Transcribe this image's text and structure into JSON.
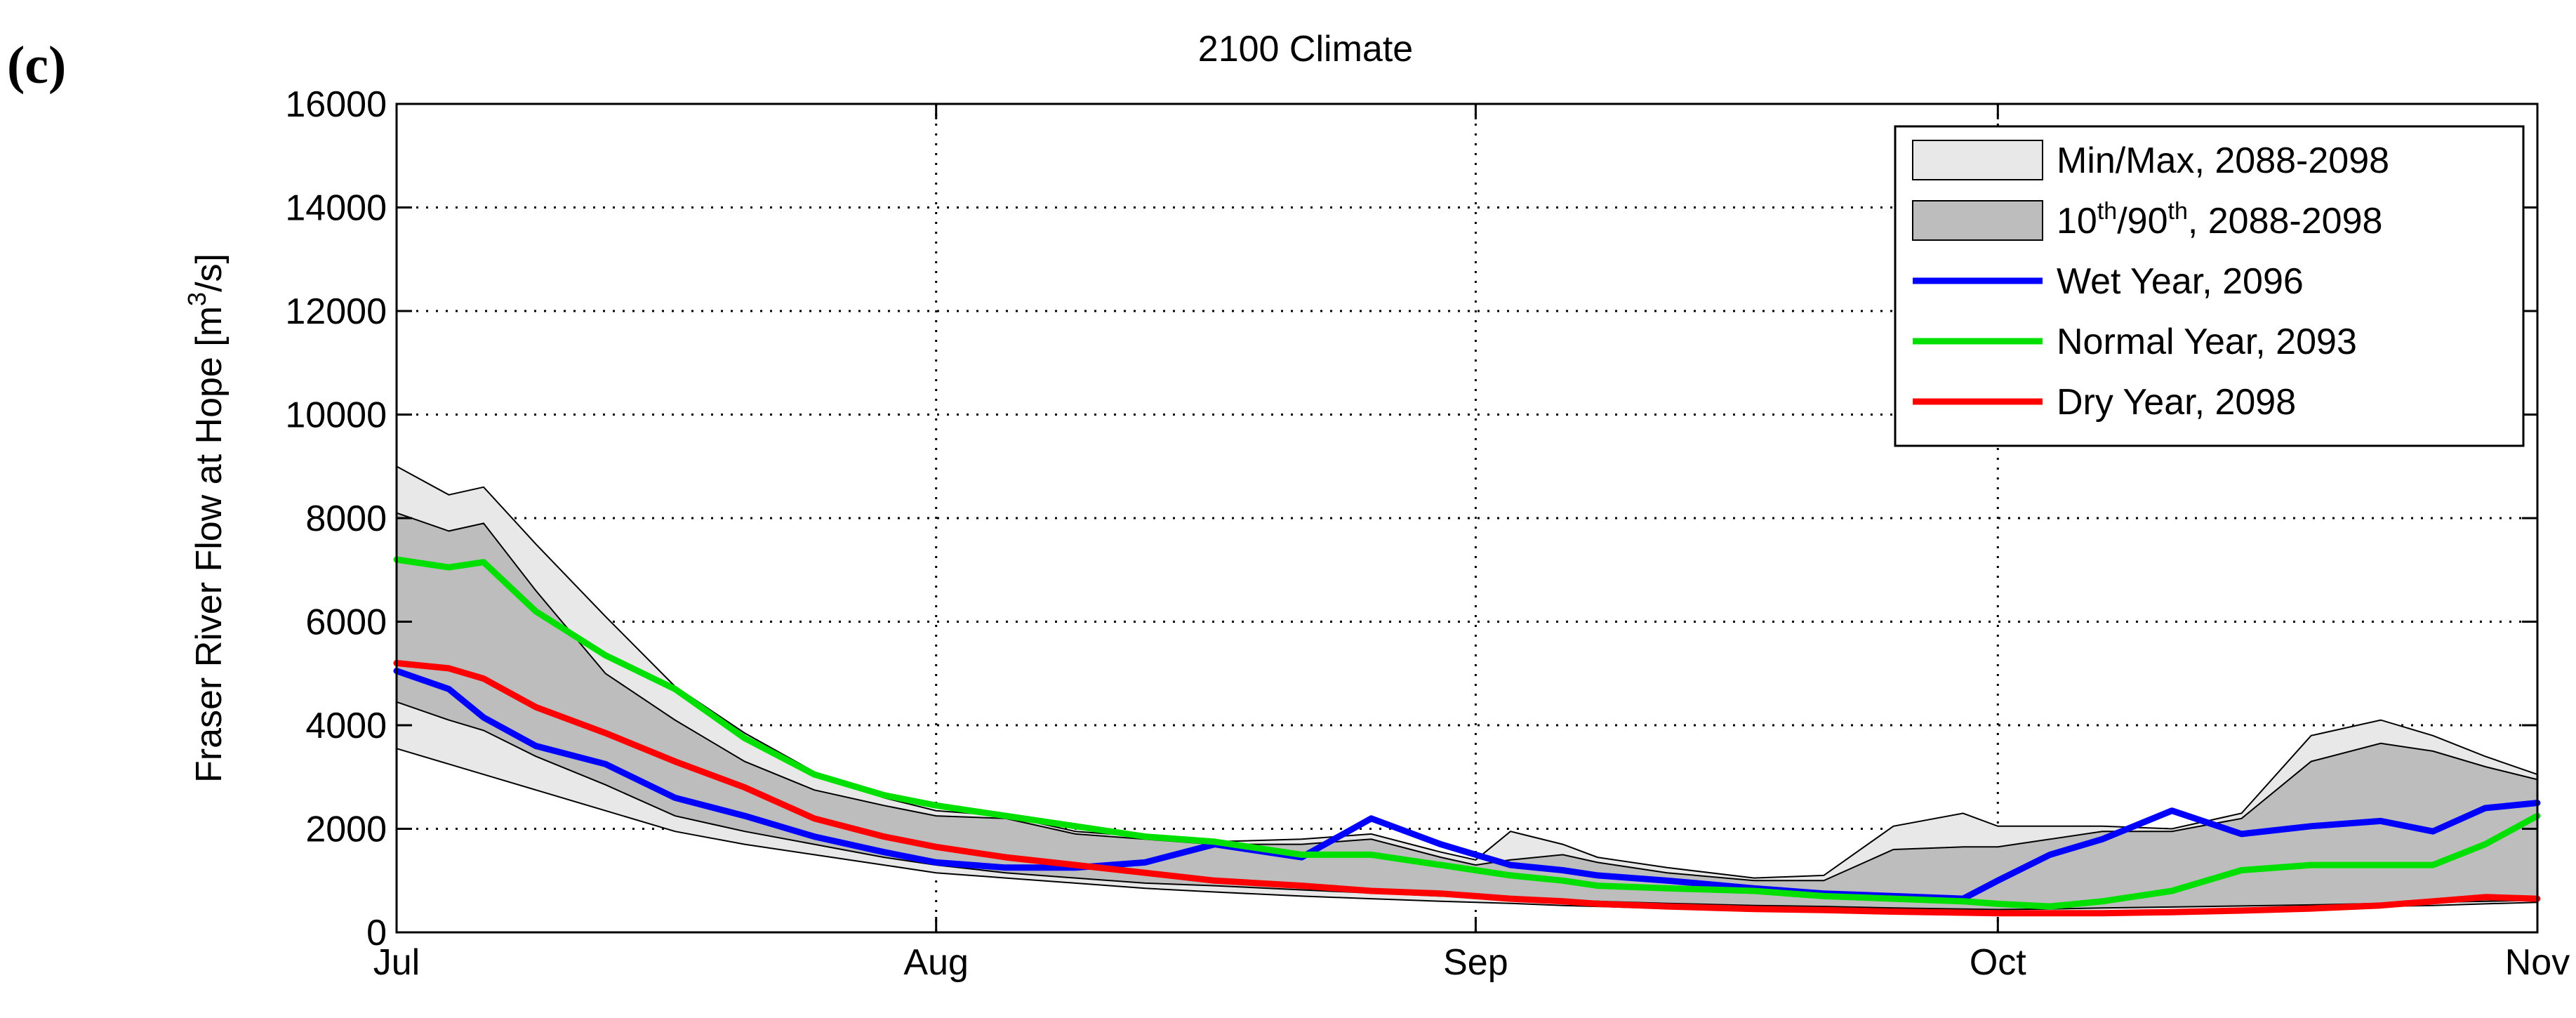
{
  "panel_label": "(c)",
  "chart_data": {
    "type": "area",
    "title": "2100 Climate",
    "xlabel": "",
    "ylabel": "Fraser River Flow at Hope [m",
    "ylabel_sup": "3",
    "ylabel_tail": "/s]",
    "x_ticks": [
      {
        "label": "Jul",
        "day": 0
      },
      {
        "label": "Aug",
        "day": 31
      },
      {
        "label": "Sep",
        "day": 62
      },
      {
        "label": "Oct",
        "day": 92
      },
      {
        "label": "Nov",
        "day": 123
      }
    ],
    "xlim": [
      0,
      123
    ],
    "ylim": [
      0,
      16000
    ],
    "y_ticks": [
      0,
      2000,
      4000,
      6000,
      8000,
      10000,
      12000,
      14000,
      16000
    ],
    "grid": true,
    "legend_position": "top-right",
    "legend": [
      {
        "id": "minmax",
        "pre": "Min/Max, 2088-2098",
        "type": "patch",
        "color": "#e8e8e8"
      },
      {
        "id": "p1090",
        "pre": "10",
        "sup1": "th",
        "mid": "/90",
        "sup2": "th",
        "post": ", 2088-2098",
        "type": "patch",
        "color": "#bdbdbd"
      },
      {
        "id": "wet",
        "pre": "Wet Year, 2096",
        "type": "line",
        "color": "#0000ff"
      },
      {
        "id": "normal",
        "pre": "Normal Year, 2093",
        "type": "line",
        "color": "#00e000"
      },
      {
        "id": "dry",
        "pre": "Dry Year, 2098",
        "type": "line",
        "color": "#ff0000"
      }
    ],
    "colors": {
      "minmax_fill": "#e8e8e8",
      "p1090_fill": "#bdbdbd",
      "band_edge": "#000000"
    },
    "x": [
      0,
      3,
      5,
      8,
      12,
      16,
      20,
      24,
      28,
      31,
      35,
      39,
      43,
      47,
      52,
      56,
      60,
      62,
      64,
      67,
      69,
      73,
      78,
      82,
      86,
      90,
      92,
      95,
      98,
      102,
      106,
      110,
      114,
      117,
      120,
      123
    ],
    "bands": [
      {
        "name": "Min/Max, 2088-2098",
        "lower": [
          3550,
          3250,
          3050,
          2750,
          2350,
          1950,
          1700,
          1500,
          1300,
          1150,
          1050,
          950,
          850,
          780,
          700,
          650,
          600,
          580,
          560,
          520,
          500,
          460,
          430,
          400,
          380,
          360,
          350,
          360,
          380,
          420,
          450,
          470,
          500,
          520,
          550,
          580
        ],
        "upper": [
          9000,
          8450,
          8600,
          7500,
          6100,
          4750,
          3850,
          3100,
          2600,
          2350,
          2250,
          1950,
          1850,
          1750,
          1800,
          1900,
          1550,
          1400,
          1950,
          1700,
          1450,
          1250,
          1050,
          1100,
          2050,
          2300,
          2050,
          2050,
          2050,
          2000,
          2300,
          3800,
          4100,
          3800,
          3400,
          3050
        ]
      },
      {
        "name": "10th/90th, 2088-2098",
        "lower": [
          4450,
          4100,
          3900,
          3400,
          2850,
          2250,
          1950,
          1700,
          1450,
          1300,
          1150,
          1050,
          950,
          900,
          820,
          760,
          700,
          680,
          650,
          620,
          600,
          560,
          520,
          500,
          470,
          450,
          440,
          450,
          470,
          490,
          510,
          530,
          560,
          580,
          600,
          620
        ],
        "upper": [
          8100,
          7750,
          7900,
          6600,
          5000,
          4100,
          3300,
          2750,
          2450,
          2250,
          2200,
          1900,
          1800,
          1700,
          1700,
          1800,
          1450,
          1300,
          1400,
          1500,
          1350,
          1150,
          1000,
          1000,
          1600,
          1650,
          1650,
          1800,
          1950,
          1950,
          2200,
          3300,
          3650,
          3500,
          3200,
          2950
        ]
      }
    ],
    "series": [
      {
        "name": "Wet Year, 2096",
        "color": "#0000ff",
        "values": [
          5050,
          4700,
          4150,
          3600,
          3250,
          2600,
          2250,
          1850,
          1550,
          1350,
          1250,
          1250,
          1350,
          1700,
          1450,
          2200,
          1700,
          1500,
          1300,
          1200,
          1100,
          1000,
          850,
          750,
          700,
          650,
          1000,
          1500,
          1800,
          2350,
          1900,
          2050,
          2150,
          1950,
          2400,
          2500
        ]
      },
      {
        "name": "Normal Year, 2093",
        "color": "#00e000",
        "values": [
          7200,
          7050,
          7150,
          6200,
          5350,
          4700,
          3750,
          3050,
          2650,
          2450,
          2250,
          2050,
          1850,
          1750,
          1500,
          1500,
          1300,
          1200,
          1100,
          1000,
          900,
          850,
          800,
          700,
          650,
          600,
          550,
          500,
          600,
          800,
          1200,
          1300,
          1300,
          1300,
          1700,
          2250
        ]
      },
      {
        "name": "Dry Year, 2098",
        "color": "#ff0000",
        "values": [
          5200,
          5100,
          4900,
          4350,
          3850,
          3300,
          2800,
          2200,
          1850,
          1650,
          1450,
          1300,
          1150,
          1000,
          900,
          800,
          750,
          700,
          650,
          600,
          550,
          500,
          450,
          430,
          400,
          380,
          370,
          370,
          370,
          390,
          420,
          460,
          520,
          600,
          680,
          650
        ]
      }
    ]
  }
}
